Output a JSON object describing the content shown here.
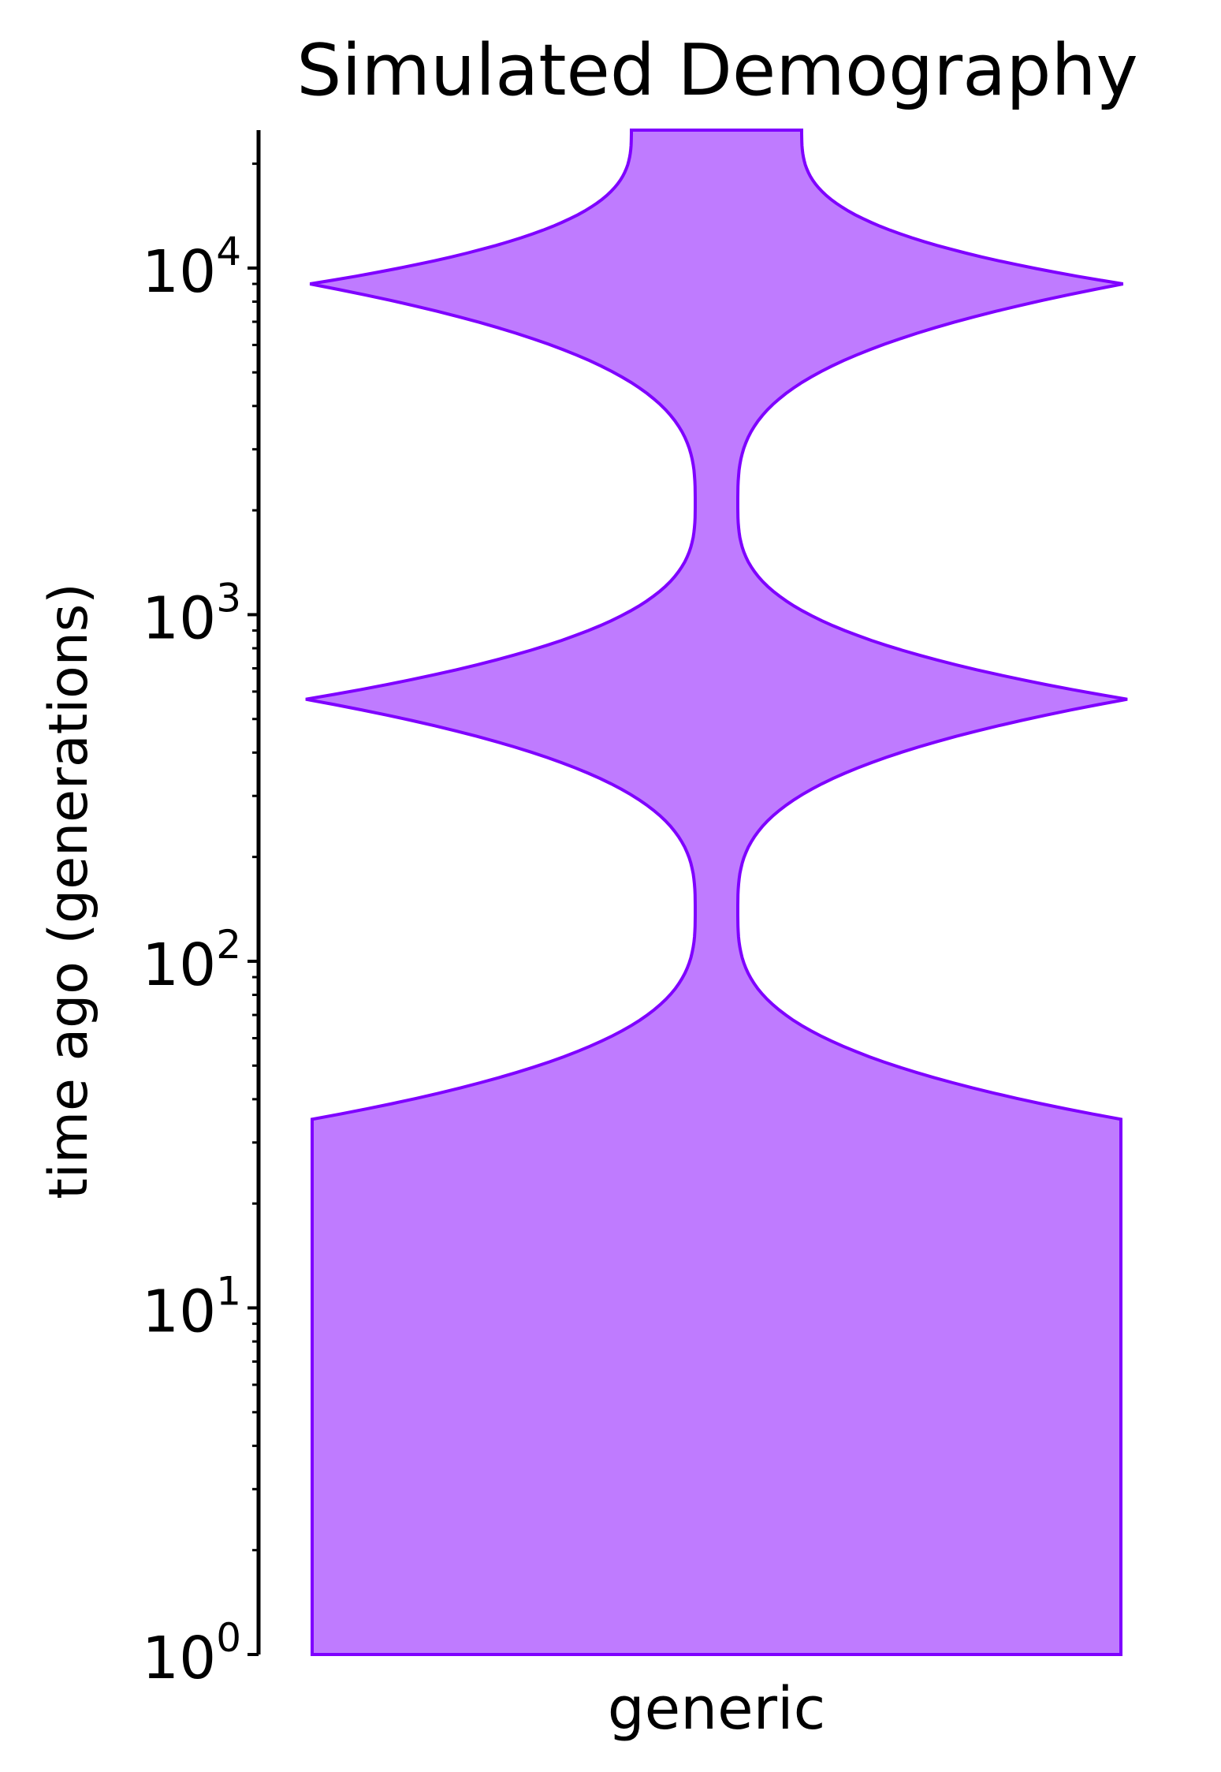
{
  "chart_data": {
    "type": "area",
    "title": "Simulated Demography",
    "xlabel": "",
    "ylabel": "time ago (generations)",
    "y_scale": "log",
    "ylim": [
      1,
      25000
    ],
    "y_ticks": [
      {
        "value": 1,
        "base": "10",
        "exp": "0"
      },
      {
        "value": 10,
        "base": "10",
        "exp": "1"
      },
      {
        "value": 100,
        "base": "10",
        "exp": "2"
      },
      {
        "value": 1000,
        "base": "10",
        "exp": "3"
      },
      {
        "value": 10000,
        "base": "10",
        "exp": "4"
      }
    ],
    "categories": [
      "generic"
    ],
    "fill_color": "#bf7bff",
    "line_color": "#7f00ff",
    "grid": false,
    "series": [
      {
        "category": "generic",
        "profile": [
          {
            "t": 1,
            "relative_size": 0.95
          },
          {
            "t": 35,
            "relative_size": 0.95
          },
          {
            "t": 140,
            "relative_size": 0.05
          },
          {
            "t": 570,
            "relative_size": 0.965
          },
          {
            "t": 2100,
            "relative_size": 0.05
          },
          {
            "t": 9000,
            "relative_size": 0.955
          },
          {
            "t": 25000,
            "relative_size": 0.2
          }
        ]
      }
    ]
  }
}
